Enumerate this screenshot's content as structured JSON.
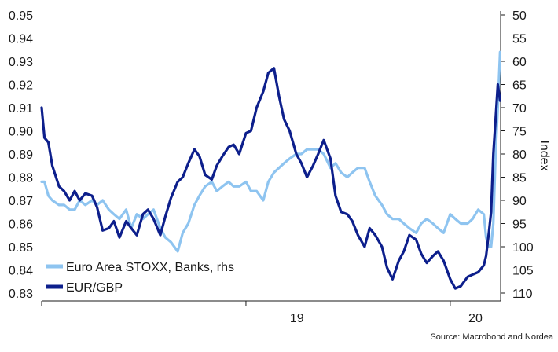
{
  "chart_data": {
    "type": "line",
    "title": "",
    "xlabel": "",
    "ylabel_left": "",
    "ylabel_right": "Index",
    "ylim_left": [
      0.83,
      0.95
    ],
    "yticks_left": [
      0.83,
      0.84,
      0.85,
      0.86,
      0.87,
      0.88,
      0.89,
      0.9,
      0.91,
      0.92,
      0.93,
      0.94,
      0.95
    ],
    "ylim_right": [
      110,
      50
    ],
    "yticks_right": [
      50,
      55,
      60,
      65,
      70,
      75,
      80,
      85,
      90,
      95,
      100,
      105,
      110
    ],
    "right_axis_inverted": true,
    "xlim": [
      "2018-01-01",
      "2020-03-31"
    ],
    "x_tick_labels": [
      {
        "date": "2019-01-01",
        "label": "19"
      },
      {
        "date": "2020-01-01",
        "label": "20"
      }
    ],
    "x_year_boundaries": [
      "2018-01-01",
      "2019-01-01",
      "2020-01-01"
    ],
    "grid": false,
    "legend_position": "bottom-left",
    "source_note": "Source: Macrobond and Nordea",
    "series": [
      {
        "name": "Euro Area STOXX, Banks, rhs",
        "axis": "right",
        "color": "#8ec4f0",
        "x": [
          "2018-01-01",
          "2018-01-06",
          "2018-01-13",
          "2018-01-20",
          "2018-02-01",
          "2018-02-10",
          "2018-02-20",
          "2018-03-01",
          "2018-03-10",
          "2018-03-20",
          "2018-04-01",
          "2018-04-10",
          "2018-04-20",
          "2018-05-01",
          "2018-05-10",
          "2018-05-20",
          "2018-06-01",
          "2018-06-10",
          "2018-06-20",
          "2018-07-01",
          "2018-07-10",
          "2018-07-20",
          "2018-08-01",
          "2018-08-10",
          "2018-08-20",
          "2018-09-01",
          "2018-09-10",
          "2018-09-20",
          "2018-10-01",
          "2018-10-10",
          "2018-10-20",
          "2018-11-01",
          "2018-11-10",
          "2018-11-20",
          "2018-12-01",
          "2018-12-10",
          "2018-12-20",
          "2019-01-01",
          "2019-01-10",
          "2019-01-20",
          "2019-02-01",
          "2019-02-10",
          "2019-02-20",
          "2019-03-01",
          "2019-03-10",
          "2019-03-20",
          "2019-04-01",
          "2019-04-10",
          "2019-04-20",
          "2019-05-01",
          "2019-05-10",
          "2019-05-20",
          "2019-06-01",
          "2019-06-10",
          "2019-06-20",
          "2019-07-01",
          "2019-07-10",
          "2019-07-20",
          "2019-08-01",
          "2019-08-10",
          "2019-08-20",
          "2019-09-01",
          "2019-09-10",
          "2019-09-20",
          "2019-10-01",
          "2019-10-10",
          "2019-10-20",
          "2019-11-01",
          "2019-11-10",
          "2019-11-20",
          "2019-12-01",
          "2019-12-10",
          "2019-12-20",
          "2020-01-01",
          "2020-01-10",
          "2020-01-20",
          "2020-02-01",
          "2020-02-10",
          "2020-02-20",
          "2020-03-01",
          "2020-03-05",
          "2020-03-10",
          "2020-03-14",
          "2020-03-18",
          "2020-03-22",
          "2020-03-26",
          "2020-03-30"
        ],
        "values": [
          86,
          86,
          89,
          90,
          91,
          91,
          92,
          92,
          90,
          91,
          90,
          91,
          90,
          92,
          93,
          94,
          92,
          96,
          93,
          94,
          93,
          92,
          96,
          98,
          99,
          101,
          97,
          95,
          91,
          89,
          87,
          86,
          88,
          87,
          86,
          87,
          87,
          86,
          88,
          88,
          90,
          86,
          84,
          83,
          82,
          81,
          80,
          80,
          79,
          79,
          79,
          80,
          83,
          82,
          84,
          85,
          84,
          83,
          83,
          86,
          89,
          91,
          93,
          94,
          94,
          95,
          96,
          97,
          95,
          94,
          95,
          96,
          97,
          93,
          94,
          95,
          95,
          94,
          92,
          93,
          98,
          100,
          100,
          95,
          80,
          70,
          58
        ]
      },
      {
        "name": "EUR/GBP",
        "axis": "left",
        "color": "#0d1f8c",
        "x": [
          "2018-01-01",
          "2018-01-06",
          "2018-01-13",
          "2018-01-20",
          "2018-02-01",
          "2018-02-10",
          "2018-02-20",
          "2018-03-01",
          "2018-03-10",
          "2018-03-20",
          "2018-04-01",
          "2018-04-10",
          "2018-04-20",
          "2018-05-01",
          "2018-05-10",
          "2018-05-20",
          "2018-06-01",
          "2018-06-10",
          "2018-06-20",
          "2018-07-01",
          "2018-07-10",
          "2018-07-20",
          "2018-08-01",
          "2018-08-10",
          "2018-08-20",
          "2018-09-01",
          "2018-09-10",
          "2018-09-20",
          "2018-10-01",
          "2018-10-10",
          "2018-10-20",
          "2018-11-01",
          "2018-11-10",
          "2018-11-20",
          "2018-12-01",
          "2018-12-10",
          "2018-12-20",
          "2019-01-01",
          "2019-01-10",
          "2019-01-20",
          "2019-02-01",
          "2019-02-10",
          "2019-02-20",
          "2019-03-01",
          "2019-03-10",
          "2019-03-20",
          "2019-04-01",
          "2019-04-10",
          "2019-04-20",
          "2019-05-01",
          "2019-05-10",
          "2019-05-20",
          "2019-06-01",
          "2019-06-10",
          "2019-06-20",
          "2019-07-01",
          "2019-07-10",
          "2019-07-20",
          "2019-08-01",
          "2019-08-10",
          "2019-08-20",
          "2019-09-01",
          "2019-09-10",
          "2019-09-20",
          "2019-10-01",
          "2019-10-10",
          "2019-10-20",
          "2019-11-01",
          "2019-11-10",
          "2019-11-20",
          "2019-12-01",
          "2019-12-10",
          "2019-12-20",
          "2020-01-01",
          "2020-01-10",
          "2020-01-20",
          "2020-02-01",
          "2020-02-10",
          "2020-02-20",
          "2020-03-01",
          "2020-03-05",
          "2020-03-10",
          "2020-03-14",
          "2020-03-18",
          "2020-03-22",
          "2020-03-26",
          "2020-03-30"
        ],
        "values": [
          0.91,
          0.897,
          0.895,
          0.885,
          0.876,
          0.874,
          0.87,
          0.874,
          0.87,
          0.873,
          0.872,
          0.867,
          0.857,
          0.858,
          0.861,
          0.854,
          0.861,
          0.858,
          0.855,
          0.864,
          0.866,
          0.862,
          0.855,
          0.863,
          0.871,
          0.878,
          0.88,
          0.886,
          0.892,
          0.889,
          0.881,
          0.879,
          0.885,
          0.889,
          0.893,
          0.894,
          0.89,
          0.899,
          0.9,
          0.91,
          0.917,
          0.925,
          0.927,
          0.915,
          0.905,
          0.9,
          0.89,
          0.886,
          0.88,
          0.885,
          0.89,
          0.896,
          0.888,
          0.872,
          0.865,
          0.864,
          0.861,
          0.855,
          0.85,
          0.858,
          0.855,
          0.85,
          0.841,
          0.836,
          0.844,
          0.848,
          0.855,
          0.853,
          0.847,
          0.843,
          0.846,
          0.848,
          0.844,
          0.836,
          0.832,
          0.833,
          0.837,
          0.838,
          0.839,
          0.842,
          0.846,
          0.856,
          0.865,
          0.89,
          0.905,
          0.92,
          0.913
        ]
      }
    ]
  }
}
